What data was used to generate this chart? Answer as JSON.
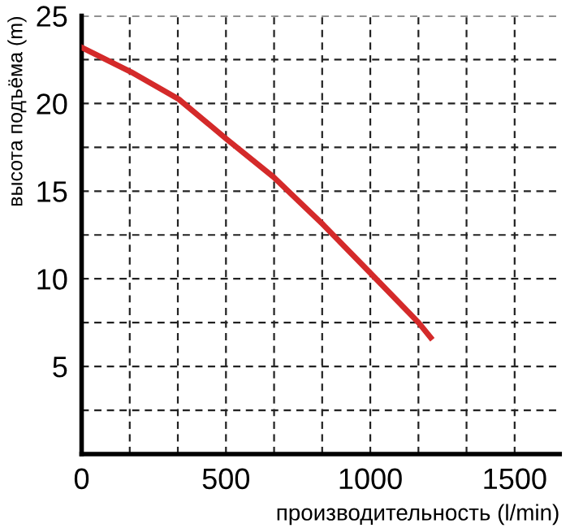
{
  "chart_data": {
    "type": "line",
    "xlabel": "производительность (l/min)",
    "ylabel": "высота подъёма (m)",
    "x": [
      0,
      171,
      336,
      500,
      665,
      836,
      1002,
      1167,
      1209
    ],
    "series": [
      {
        "color": "#d42a2a",
        "values": [
          23.2,
          21.8,
          20.25,
          18.0,
          15.8,
          13.1,
          10.3,
          7.5,
          6.65
        ]
      }
    ],
    "xlim": [
      0,
      1656
    ],
    "ylim": [
      0,
      25
    ],
    "xticks": [
      0,
      {
        "value": 166.7,
        "label": null
      },
      {
        "value": 333.3,
        "label": null
      },
      500,
      {
        "value": 666.7,
        "label": null
      },
      {
        "value": 833.3,
        "label": null
      },
      1000,
      {
        "value": 1166.7,
        "label": null
      },
      {
        "value": 1333.3,
        "label": null
      },
      1500
    ],
    "yticks": [
      {
        "value": 0,
        "label": null
      },
      {
        "value": 2.5,
        "label": null
      },
      5,
      {
        "value": 7.5,
        "label": null
      },
      10,
      {
        "value": 12.5,
        "label": null
      },
      15,
      {
        "value": 17.5,
        "label": null
      },
      20,
      {
        "value": 22.5,
        "label": null
      },
      25
    ],
    "grid": true,
    "line_style": "solid",
    "marker": "none"
  }
}
